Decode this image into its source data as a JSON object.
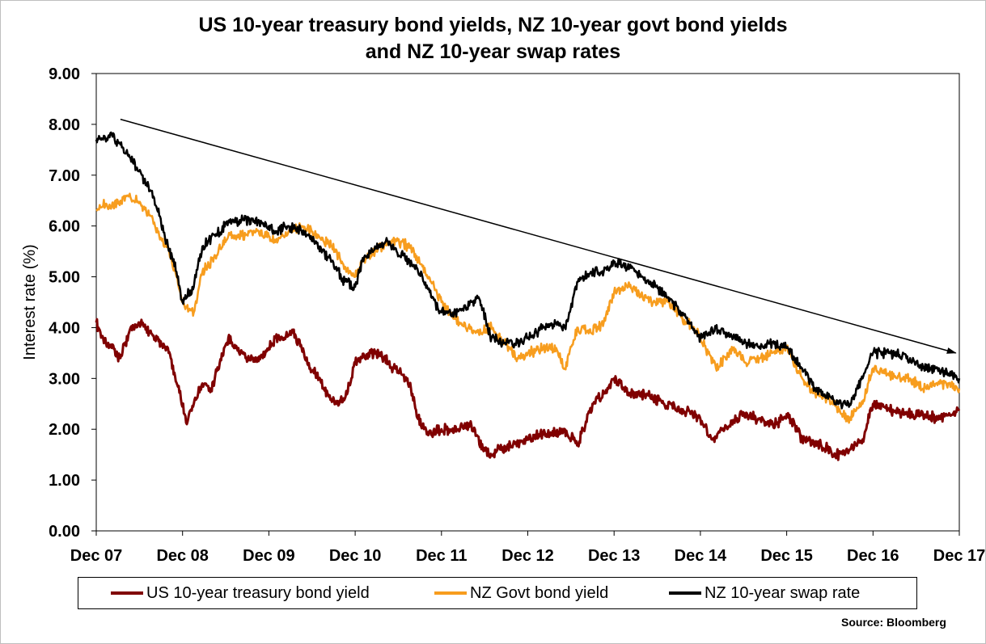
{
  "chart_data": {
    "type": "line",
    "title": "US 10-year treasury bond yields, NZ 10-year govt bond yields",
    "title_line2": "and NZ 10-year swap rates",
    "xlabel": "",
    "ylabel": "Interest rate (%)",
    "ylim": [
      0,
      9
    ],
    "yticks": [
      "0.00",
      "1.00",
      "2.00",
      "3.00",
      "4.00",
      "5.00",
      "6.00",
      "7.00",
      "8.00",
      "9.00"
    ],
    "xticks": [
      "Dec 07",
      "Dec 08",
      "Dec 09",
      "Dec 10",
      "Dec 11",
      "Dec 12",
      "Dec 13",
      "Dec 14",
      "Dec 15",
      "Dec 16",
      "Dec 17"
    ],
    "xlim": [
      2007.92,
      2017.92
    ],
    "grid": false,
    "legend": "bottom",
    "trend_arrow": {
      "from": [
        2008.2,
        8.1
      ],
      "to": [
        2017.88,
        3.5
      ],
      "color": "#000000"
    },
    "source": "Source: Bloomberg",
    "series": [
      {
        "name": "US 10-year treasury bond yield",
        "color": "#800000",
        "x": [
          2007.92,
          2008.0,
          2008.1,
          2008.2,
          2008.3,
          2008.42,
          2008.5,
          2008.6,
          2008.75,
          2008.9,
          2008.97,
          2009.05,
          2009.15,
          2009.25,
          2009.35,
          2009.45,
          2009.55,
          2009.65,
          2009.75,
          2009.85,
          2009.92,
          2010.0,
          2010.1,
          2010.2,
          2010.3,
          2010.4,
          2010.5,
          2010.6,
          2010.7,
          2010.8,
          2010.92,
          2011.0,
          2011.1,
          2011.2,
          2011.3,
          2011.45,
          2011.55,
          2011.65,
          2011.75,
          2011.92,
          2012.1,
          2012.25,
          2012.4,
          2012.5,
          2012.6,
          2012.75,
          2012.92,
          2013.05,
          2013.2,
          2013.35,
          2013.5,
          2013.67,
          2013.8,
          2013.92,
          2014.1,
          2014.3,
          2014.5,
          2014.7,
          2014.83,
          2014.92,
          2015.05,
          2015.2,
          2015.4,
          2015.6,
          2015.8,
          2015.92,
          2016.1,
          2016.3,
          2016.5,
          2016.65,
          2016.8,
          2016.92,
          2017.1,
          2017.3,
          2017.5,
          2017.7,
          2017.92
        ],
        "values": [
          4.1,
          3.8,
          3.6,
          3.4,
          3.9,
          4.1,
          4.0,
          3.8,
          3.6,
          2.6,
          2.1,
          2.5,
          2.9,
          2.8,
          3.3,
          3.8,
          3.6,
          3.4,
          3.4,
          3.4,
          3.6,
          3.8,
          3.8,
          3.9,
          3.6,
          3.2,
          3.0,
          2.7,
          2.5,
          2.6,
          3.3,
          3.4,
          3.5,
          3.5,
          3.3,
          3.1,
          2.9,
          2.2,
          1.9,
          2.0,
          2.0,
          2.1,
          1.6,
          1.5,
          1.6,
          1.7,
          1.8,
          1.9,
          1.9,
          2.0,
          1.7,
          2.5,
          2.7,
          3.0,
          2.7,
          2.7,
          2.5,
          2.4,
          2.3,
          2.2,
          1.8,
          2.0,
          2.3,
          2.2,
          2.1,
          2.3,
          1.8,
          1.7,
          1.5,
          1.6,
          1.8,
          2.5,
          2.4,
          2.3,
          2.3,
          2.2,
          2.4
        ]
      },
      {
        "name": "NZ Govt bond yield",
        "color": "#f79d1e",
        "x": [
          2007.92,
          2008.0,
          2008.1,
          2008.2,
          2008.3,
          2008.45,
          2008.55,
          2008.65,
          2008.75,
          2008.85,
          2008.92,
          2009.05,
          2009.15,
          2009.3,
          2009.45,
          2009.6,
          2009.75,
          2009.92,
          2010.0,
          2010.15,
          2010.3,
          2010.5,
          2010.65,
          2010.8,
          2010.92,
          2011.0,
          2011.15,
          2011.3,
          2011.4,
          2011.55,
          2011.7,
          2011.8,
          2011.92,
          2012.05,
          2012.2,
          2012.35,
          2012.5,
          2012.65,
          2012.8,
          2012.92,
          2013.1,
          2013.25,
          2013.35,
          2013.5,
          2013.65,
          2013.8,
          2013.92,
          2014.1,
          2014.25,
          2014.4,
          2014.55,
          2014.7,
          2014.83,
          2014.92,
          2015.1,
          2015.3,
          2015.45,
          2015.6,
          2015.75,
          2015.92,
          2016.1,
          2016.25,
          2016.4,
          2016.55,
          2016.65,
          2016.8,
          2016.92,
          2017.1,
          2017.2,
          2017.35,
          2017.5,
          2017.65,
          2017.8,
          2017.92
        ],
        "values": [
          6.3,
          6.4,
          6.4,
          6.5,
          6.6,
          6.4,
          6.2,
          5.8,
          5.6,
          5.0,
          4.5,
          4.3,
          5.1,
          5.4,
          5.8,
          5.8,
          5.9,
          5.8,
          5.7,
          5.9,
          6.0,
          5.8,
          5.6,
          5.2,
          5.0,
          5.3,
          5.5,
          5.7,
          5.7,
          5.6,
          5.2,
          4.9,
          4.5,
          4.2,
          4.0,
          3.9,
          4.0,
          3.7,
          3.4,
          3.5,
          3.6,
          3.6,
          3.2,
          4.0,
          3.9,
          4.1,
          4.7,
          4.8,
          4.6,
          4.5,
          4.5,
          4.2,
          4.0,
          3.8,
          3.2,
          3.6,
          3.3,
          3.4,
          3.5,
          3.6,
          3.0,
          2.7,
          2.6,
          2.3,
          2.2,
          2.5,
          3.2,
          3.1,
          3.0,
          3.0,
          2.8,
          2.9,
          2.9,
          2.8
        ]
      },
      {
        "name": "NZ 10-year swap rate",
        "color": "#000000",
        "x": [
          2007.92,
          2008.0,
          2008.1,
          2008.2,
          2008.3,
          2008.45,
          2008.55,
          2008.65,
          2008.75,
          2008.85,
          2008.92,
          2009.05,
          2009.15,
          2009.3,
          2009.45,
          2009.6,
          2009.75,
          2009.92,
          2010.0,
          2010.15,
          2010.3,
          2010.5,
          2010.65,
          2010.8,
          2010.92,
          2011.0,
          2011.15,
          2011.3,
          2011.4,
          2011.55,
          2011.7,
          2011.8,
          2011.92,
          2012.05,
          2012.2,
          2012.35,
          2012.5,
          2012.65,
          2012.8,
          2012.92,
          2013.1,
          2013.25,
          2013.35,
          2013.5,
          2013.65,
          2013.8,
          2013.92,
          2014.1,
          2014.25,
          2014.4,
          2014.55,
          2014.7,
          2014.83,
          2014.92,
          2015.1,
          2015.3,
          2015.45,
          2015.6,
          2015.75,
          2015.92,
          2016.1,
          2016.25,
          2016.4,
          2016.55,
          2016.65,
          2016.8,
          2016.92,
          2017.1,
          2017.2,
          2017.35,
          2017.5,
          2017.65,
          2017.8,
          2017.92
        ],
        "values": [
          7.7,
          7.7,
          7.8,
          7.6,
          7.4,
          7.0,
          6.7,
          6.2,
          5.6,
          5.1,
          4.5,
          4.8,
          5.6,
          5.8,
          6.1,
          6.1,
          6.1,
          6.0,
          5.9,
          6.0,
          5.9,
          5.6,
          5.3,
          4.9,
          4.8,
          5.3,
          5.6,
          5.7,
          5.5,
          5.3,
          5.0,
          4.6,
          4.3,
          4.3,
          4.4,
          4.6,
          3.8,
          3.7,
          3.7,
          3.8,
          4.0,
          4.1,
          4.0,
          4.9,
          5.1,
          5.1,
          5.3,
          5.2,
          5.0,
          4.8,
          4.6,
          4.3,
          4.0,
          3.8,
          4.0,
          3.8,
          3.7,
          3.6,
          3.7,
          3.6,
          3.2,
          2.8,
          2.6,
          2.5,
          2.5,
          3.0,
          3.5,
          3.5,
          3.5,
          3.4,
          3.2,
          3.2,
          3.1,
          3.0
        ]
      }
    ]
  }
}
